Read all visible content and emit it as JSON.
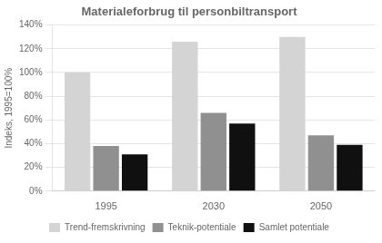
{
  "chart_data": {
    "type": "bar",
    "title": "Materialeforbrug til personbiltransport",
    "ylabel": "Indeks, 1995=100%",
    "categories": [
      "1995",
      "2030",
      "2050"
    ],
    "series": [
      {
        "name": "Trend-fremskrivning",
        "color": "#d4d4d4",
        "values": [
          100,
          126,
          130
        ]
      },
      {
        "name": "Teknik-potentiale",
        "color": "#909090",
        "values": [
          38,
          66,
          47
        ]
      },
      {
        "name": "Samlet potentiale",
        "color": "#101010",
        "values": [
          31,
          57,
          39
        ]
      }
    ],
    "ylim": [
      0,
      140
    ],
    "yticks": [
      {
        "value": 0,
        "label": "0%"
      },
      {
        "value": 20,
        "label": "20%"
      },
      {
        "value": 40,
        "label": "40%"
      },
      {
        "value": 60,
        "label": "60%"
      },
      {
        "value": 80,
        "label": "80%"
      },
      {
        "value": 100,
        "label": "100%"
      },
      {
        "value": 120,
        "label": "120%"
      },
      {
        "value": 140,
        "label": "140%"
      }
    ],
    "grid": "y",
    "legend": "bottom"
  }
}
